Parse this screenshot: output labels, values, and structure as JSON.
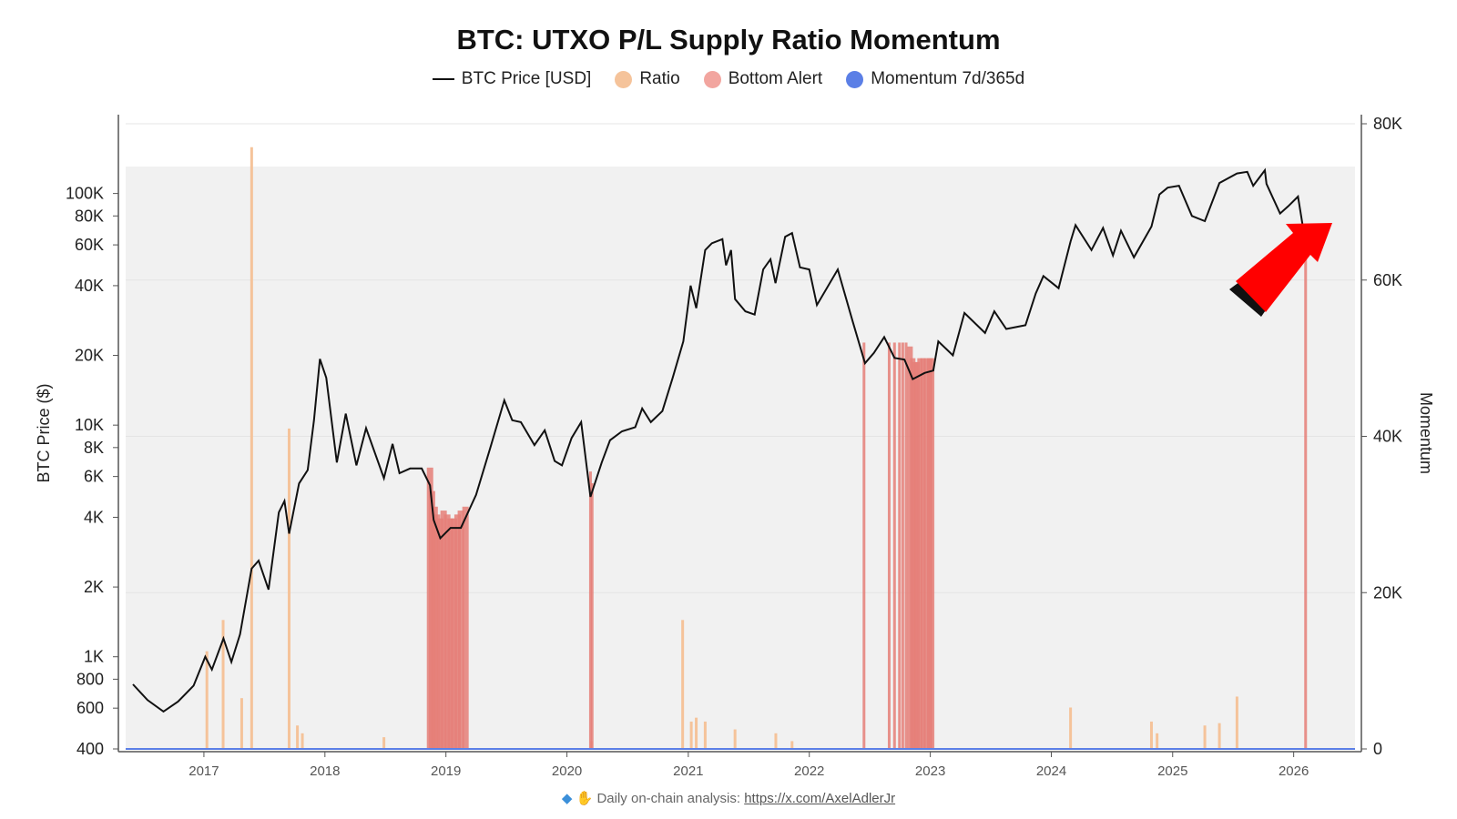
{
  "chart_data": {
    "type": "line",
    "title": "BTC: UTXO P/L Supply Ratio Momentum",
    "legend": [
      {
        "name": "BTC Price [USD]",
        "color": "#111111",
        "kind": "line"
      },
      {
        "name": "Ratio",
        "color": "#f5c39a",
        "kind": "dot"
      },
      {
        "name": "Bottom Alert",
        "color": "#f2a59f",
        "kind": "dot"
      },
      {
        "name": "Momentum 7d/365d",
        "color": "#5b7fe6",
        "kind": "dot"
      }
    ],
    "legend_placement": "top-center",
    "ylabel_left": "BTC Price ($)",
    "ylabel_right": "Momentum",
    "y_left": {
      "scale": "log",
      "range": [
        400,
        200000
      ],
      "ticks": [
        {
          "v": 400,
          "label": "400"
        },
        {
          "v": 600,
          "label": "600"
        },
        {
          "v": 800,
          "label": "800"
        },
        {
          "v": 1000,
          "label": "1K"
        },
        {
          "v": 2000,
          "label": "2K"
        },
        {
          "v": 4000,
          "label": "4K"
        },
        {
          "v": 6000,
          "label": "6K"
        },
        {
          "v": 8000,
          "label": "8K"
        },
        {
          "v": 10000,
          "label": "10K"
        },
        {
          "v": 20000,
          "label": "20K"
        },
        {
          "v": 40000,
          "label": "40K"
        },
        {
          "v": 60000,
          "label": "60K"
        },
        {
          "v": 80000,
          "label": "80K"
        },
        {
          "v": 100000,
          "label": "100K"
        }
      ]
    },
    "y_right": {
      "scale": "linear",
      "range": [
        0,
        80000
      ],
      "ticks": [
        {
          "v": 0,
          "label": "0"
        },
        {
          "v": 20000,
          "label": "20K"
        },
        {
          "v": 40000,
          "label": "40K"
        },
        {
          "v": 60000,
          "label": "60K"
        },
        {
          "v": 80000,
          "label": "80K"
        }
      ]
    },
    "x": {
      "type": "date",
      "range": [
        "2016-05-10",
        "2026-07-05"
      ],
      "ticks": [
        "2017",
        "2018",
        "2019",
        "2020",
        "2021",
        "2022",
        "2023",
        "2024",
        "2025",
        "2026"
      ]
    },
    "price_series": {
      "name": "BTC Price [USD]",
      "points": [
        [
          "2016-06-01",
          760
        ],
        [
          "2016-07-15",
          650
        ],
        [
          "2016-09-01",
          580
        ],
        [
          "2016-10-15",
          640
        ],
        [
          "2016-12-01",
          750
        ],
        [
          "2017-01-05",
          1000
        ],
        [
          "2017-01-25",
          880
        ],
        [
          "2017-03-01",
          1200
        ],
        [
          "2017-03-25",
          950
        ],
        [
          "2017-04-20",
          1250
        ],
        [
          "2017-05-25",
          2400
        ],
        [
          "2017-06-15",
          2600
        ],
        [
          "2017-07-15",
          1950
        ],
        [
          "2017-08-15",
          4200
        ],
        [
          "2017-09-01",
          4700
        ],
        [
          "2017-09-15",
          3400
        ],
        [
          "2017-10-15",
          5600
        ],
        [
          "2017-11-10",
          6400
        ],
        [
          "2017-11-29",
          10500
        ],
        [
          "2017-12-17",
          19300
        ],
        [
          "2018-01-05",
          16000
        ],
        [
          "2018-02-06",
          6900
        ],
        [
          "2018-03-05",
          11200
        ],
        [
          "2018-04-06",
          6700
        ],
        [
          "2018-05-05",
          9700
        ],
        [
          "2018-06-28",
          5900
        ],
        [
          "2018-07-24",
          8300
        ],
        [
          "2018-08-14",
          6200
        ],
        [
          "2018-09-15",
          6500
        ],
        [
          "2018-10-20",
          6500
        ],
        [
          "2018-11-14",
          5500
        ],
        [
          "2018-11-25",
          3900
        ],
        [
          "2018-12-15",
          3250
        ],
        [
          "2019-01-15",
          3600
        ],
        [
          "2019-02-15",
          3600
        ],
        [
          "2019-04-02",
          5000
        ],
        [
          "2019-05-15",
          8000
        ],
        [
          "2019-06-26",
          12800
        ],
        [
          "2019-07-20",
          10500
        ],
        [
          "2019-08-15",
          10300
        ],
        [
          "2019-09-25",
          8200
        ],
        [
          "2019-10-26",
          9500
        ],
        [
          "2019-11-25",
          7000
        ],
        [
          "2019-12-17",
          6700
        ],
        [
          "2020-01-15",
          8800
        ],
        [
          "2020-02-13",
          10300
        ],
        [
          "2020-03-12",
          4900
        ],
        [
          "2020-04-15",
          6900
        ],
        [
          "2020-05-10",
          8600
        ],
        [
          "2020-06-15",
          9400
        ],
        [
          "2020-07-25",
          9800
        ],
        [
          "2020-08-15",
          11800
        ],
        [
          "2020-09-10",
          10300
        ],
        [
          "2020-10-15",
          11500
        ],
        [
          "2020-11-15",
          16000
        ],
        [
          "2020-12-17",
          23000
        ],
        [
          "2021-01-08",
          40000
        ],
        [
          "2021-01-25",
          32000
        ],
        [
          "2021-02-21",
          57000
        ],
        [
          "2021-03-13",
          61000
        ],
        [
          "2021-04-14",
          63500
        ],
        [
          "2021-04-25",
          49000
        ],
        [
          "2021-05-10",
          57000
        ],
        [
          "2021-05-22",
          35000
        ],
        [
          "2021-06-22",
          31000
        ],
        [
          "2021-07-20",
          30000
        ],
        [
          "2021-08-15",
          47000
        ],
        [
          "2021-09-06",
          52000
        ],
        [
          "2021-09-21",
          41000
        ],
        [
          "2021-10-20",
          65000
        ],
        [
          "2021-11-10",
          67500
        ],
        [
          "2021-12-04",
          48000
        ],
        [
          "2022-01-01",
          47000
        ],
        [
          "2022-01-24",
          33000
        ],
        [
          "2022-03-28",
          47000
        ],
        [
          "2022-05-12",
          28000
        ],
        [
          "2022-06-18",
          18500
        ],
        [
          "2022-07-15",
          20500
        ],
        [
          "2022-08-15",
          24000
        ],
        [
          "2022-09-15",
          19500
        ],
        [
          "2022-10-15",
          19200
        ],
        [
          "2022-11-09",
          15800
        ],
        [
          "2022-12-15",
          16800
        ],
        [
          "2023-01-10",
          17200
        ],
        [
          "2023-01-25",
          23000
        ],
        [
          "2023-03-10",
          20000
        ],
        [
          "2023-04-14",
          30500
        ],
        [
          "2023-06-15",
          25000
        ],
        [
          "2023-07-13",
          31000
        ],
        [
          "2023-08-18",
          26000
        ],
        [
          "2023-10-15",
          27000
        ],
        [
          "2023-11-15",
          37000
        ],
        [
          "2023-12-08",
          44000
        ],
        [
          "2024-01-23",
          39000
        ],
        [
          "2024-02-28",
          62000
        ],
        [
          "2024-03-14",
          73000
        ],
        [
          "2024-05-01",
          57000
        ],
        [
          "2024-06-05",
          71000
        ],
        [
          "2024-07-05",
          54000
        ],
        [
          "2024-07-29",
          69000
        ],
        [
          "2024-09-06",
          53000
        ],
        [
          "2024-10-29",
          72000
        ],
        [
          "2024-11-22",
          99000
        ],
        [
          "2024-12-17",
          106000
        ],
        [
          "2025-01-20",
          108000
        ],
        [
          "2025-02-28",
          80000
        ],
        [
          "2025-04-08",
          76000
        ],
        [
          "2025-05-22",
          111000
        ],
        [
          "2025-07-14",
          122000
        ],
        [
          "2025-08-14",
          124000
        ],
        [
          "2025-09-01",
          108000
        ],
        [
          "2025-10-06",
          126000
        ],
        [
          "2025-10-11",
          110000
        ],
        [
          "2025-11-21",
          82000
        ],
        [
          "2025-12-15",
          88000
        ],
        [
          "2026-01-14",
          97000
        ],
        [
          "2026-02-05",
          62000
        ],
        [
          "2026-02-15",
          68000
        ]
      ]
    },
    "ratio_series": {
      "name": "Ratio",
      "spikes": [
        [
          "2017-01-10",
          12500
        ],
        [
          "2017-02-28",
          16500
        ],
        [
          "2017-04-25",
          6500
        ],
        [
          "2017-05-25",
          77000
        ],
        [
          "2017-09-15",
          41000
        ],
        [
          "2017-10-10",
          3000
        ],
        [
          "2017-10-25",
          2000
        ],
        [
          "2018-06-28",
          1500
        ],
        [
          "2020-03-15",
          1000
        ],
        [
          "2020-12-15",
          16500
        ],
        [
          "2021-01-10",
          3500
        ],
        [
          "2021-01-25",
          4000
        ],
        [
          "2021-02-21",
          3500
        ],
        [
          "2021-05-22",
          2500
        ],
        [
          "2021-09-22",
          2000
        ],
        [
          "2021-11-10",
          1000
        ],
        [
          "2024-02-28",
          5300
        ],
        [
          "2024-10-29",
          3500
        ],
        [
          "2024-11-15",
          2000
        ],
        [
          "2025-04-08",
          3000
        ],
        [
          "2025-05-22",
          3300
        ],
        [
          "2025-07-14",
          6700
        ]
      ]
    },
    "bottom_alert_series": {
      "name": "Bottom Alert",
      "bars": [
        [
          "2018-11-14",
          36000
        ],
        [
          "2018-11-20",
          33000
        ],
        [
          "2018-11-28",
          31000
        ],
        [
          "2018-12-05",
          30000
        ],
        [
          "2018-12-15",
          29500
        ],
        [
          "2018-12-25",
          30500
        ],
        [
          "2019-01-05",
          30000
        ],
        [
          "2019-01-15",
          29500
        ],
        [
          "2019-01-25",
          29500
        ],
        [
          "2019-02-05",
          30000
        ],
        [
          "2019-02-15",
          30500
        ],
        [
          "2019-03-01",
          31000
        ],
        [
          "2020-03-12",
          35500
        ],
        [
          "2020-03-17",
          34000
        ],
        [
          "2022-06-15",
          52000
        ],
        [
          "2022-08-30",
          52000
        ],
        [
          "2022-09-15",
          52000
        ],
        [
          "2022-09-30",
          52000
        ],
        [
          "2022-10-10",
          52000
        ],
        [
          "2022-10-20",
          52000
        ],
        [
          "2022-11-01",
          51500
        ],
        [
          "2022-11-09",
          50000
        ],
        [
          "2022-11-15",
          49500
        ],
        [
          "2022-11-22",
          49500
        ],
        [
          "2022-12-01",
          50000
        ],
        [
          "2022-12-10",
          50000
        ],
        [
          "2022-12-20",
          50000
        ],
        [
          "2022-12-30",
          50000
        ],
        [
          "2023-01-05",
          50000
        ],
        [
          "2026-02-06",
          67000
        ]
      ]
    },
    "momentum_series": {
      "name": "Momentum 7d/365d",
      "level": 0
    }
  },
  "footer": {
    "text": "Daily on-chain analysis: ",
    "link": "https://x.com/AxelAdlerJr"
  },
  "colors": {
    "price": "#111111",
    "ratio": "#f5c39a",
    "bottom_alert": "#e57f78",
    "momentum": "#5b7fe6",
    "arrow": "#ff0000"
  }
}
